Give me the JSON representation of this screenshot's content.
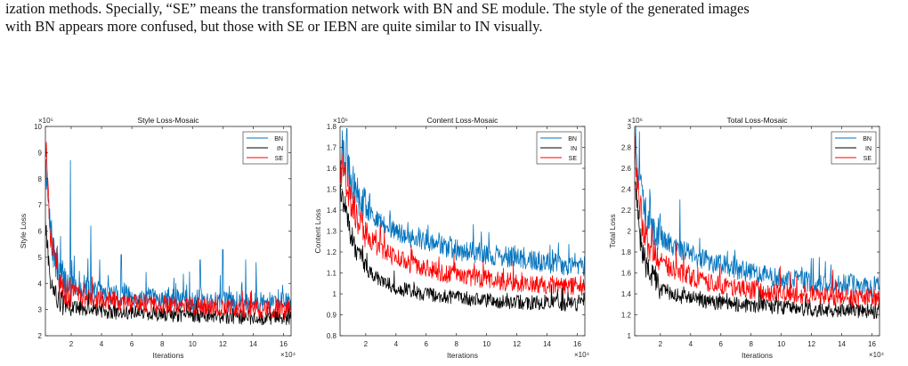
{
  "caption": {
    "line1": "ization methods. Specially, “SE” means the transformation network with BN and SE module. The style of the generated images",
    "line2": "with BN appears more confused, but those with SE or IEBN are quite similar to IN visually."
  },
  "colors": {
    "BN": "#0072bd",
    "IN": "#000000",
    "SE": "#ff0000"
  },
  "chart_data": [
    {
      "type": "line",
      "title": "Style Loss-Mosaic",
      "xlabel": "Iterations",
      "ylabel": "Style Loss",
      "x_exponent": "×10⁴",
      "y_exponent": "×10⁵",
      "xlim": [
        0.3,
        16.5
      ],
      "ylim": [
        2,
        10
      ],
      "xticks": [
        2,
        4,
        6,
        8,
        10,
        12,
        14,
        16
      ],
      "yticks": [
        2,
        3,
        4,
        5,
        6,
        7,
        8,
        9,
        10
      ],
      "legend_position": "top-right",
      "series": [
        {
          "name": "BN",
          "color": "#0072bd",
          "x": [
            0.3,
            0.45,
            0.6,
            0.8,
            1,
            1.3,
            1.6,
            2,
            2.5,
            3,
            4,
            5,
            6,
            7,
            8,
            9,
            10,
            11,
            12,
            13,
            14,
            15,
            16,
            16.5
          ],
          "y": [
            8.9,
            7.3,
            6.2,
            5.3,
            4.7,
            4.3,
            4.1,
            3.95,
            3.85,
            3.75,
            3.65,
            3.55,
            3.5,
            3.45,
            3.4,
            3.38,
            3.36,
            3.34,
            3.32,
            3.3,
            3.28,
            3.26,
            3.25,
            3.25
          ],
          "spikes": [
            [
              1.95,
              8.7
            ],
            [
              3.3,
              6.2
            ],
            [
              1.3,
              5.8
            ],
            [
              12.0,
              5.3
            ],
            [
              10.5,
              4.9
            ],
            [
              5.3,
              5.1
            ],
            [
              13.5,
              4.9
            ],
            [
              14.2,
              4.8
            ]
          ]
        },
        {
          "name": "IN",
          "color": "#000000",
          "x": [
            0.3,
            0.45,
            0.6,
            0.8,
            1,
            1.3,
            1.6,
            2,
            2.5,
            3,
            4,
            5,
            6,
            7,
            8,
            9,
            10,
            11,
            12,
            13,
            14,
            15,
            16,
            16.5
          ],
          "y": [
            6.6,
            5.2,
            4.3,
            3.8,
            3.5,
            3.3,
            3.2,
            3.12,
            3.05,
            3.0,
            2.95,
            2.9,
            2.88,
            2.85,
            2.82,
            2.8,
            2.78,
            2.76,
            2.74,
            2.72,
            2.7,
            2.68,
            2.66,
            2.65
          ],
          "spikes": []
        },
        {
          "name": "SE",
          "color": "#ff0000",
          "x": [
            0.3,
            0.45,
            0.6,
            0.8,
            1,
            1.3,
            1.6,
            2,
            2.5,
            3,
            4,
            5,
            6,
            7,
            8,
            9,
            10,
            11,
            12,
            13,
            14,
            15,
            16,
            16.5
          ],
          "y": [
            9.3,
            7.4,
            6.1,
            5.1,
            4.5,
            4.0,
            3.8,
            3.65,
            3.55,
            3.48,
            3.4,
            3.32,
            3.27,
            3.22,
            3.18,
            3.15,
            3.12,
            3.1,
            3.08,
            3.06,
            3.04,
            3.02,
            3.0,
            3.0
          ],
          "spikes": [
            [
              0.35,
              9.4
            ]
          ]
        }
      ]
    },
    {
      "type": "line",
      "title": "Content Loss-Mosaic",
      "xlabel": "Iterations",
      "ylabel": "Content Loss",
      "x_exponent": "×10⁴",
      "y_exponent": "×10⁶",
      "xlim": [
        0.3,
        16.5
      ],
      "ylim": [
        0.8,
        1.8
      ],
      "xticks": [
        2,
        4,
        6,
        8,
        10,
        12,
        14,
        16
      ],
      "yticks": [
        0.8,
        0.9,
        1,
        1.1,
        1.2,
        1.3,
        1.4,
        1.5,
        1.6,
        1.7,
        1.8
      ],
      "legend_position": "top-right",
      "series": [
        {
          "name": "BN",
          "color": "#0072bd",
          "x": [
            0.3,
            0.5,
            0.8,
            1,
            1.5,
            2,
            3,
            4,
            5,
            6,
            7,
            8,
            9,
            10,
            11,
            12,
            13,
            14,
            15,
            16,
            16.5
          ],
          "y": [
            1.62,
            1.66,
            1.6,
            1.56,
            1.46,
            1.41,
            1.34,
            1.3,
            1.27,
            1.25,
            1.23,
            1.21,
            1.2,
            1.19,
            1.18,
            1.17,
            1.16,
            1.15,
            1.14,
            1.13,
            1.13
          ],
          "spikes": [
            [
              0.75,
              1.79
            ],
            [
              0.45,
              1.78
            ]
          ]
        },
        {
          "name": "IN",
          "color": "#000000",
          "x": [
            0.3,
            0.5,
            0.8,
            1,
            1.5,
            2,
            3,
            4,
            5,
            6,
            7,
            8,
            9,
            10,
            11,
            12,
            13,
            14,
            15,
            16,
            16.5
          ],
          "y": [
            1.5,
            1.45,
            1.35,
            1.28,
            1.18,
            1.12,
            1.06,
            1.03,
            1.01,
            1.0,
            0.99,
            0.98,
            0.975,
            0.97,
            0.965,
            0.96,
            0.958,
            0.955,
            0.952,
            0.95,
            0.95
          ],
          "spikes": []
        },
        {
          "name": "SE",
          "color": "#ff0000",
          "x": [
            0.3,
            0.5,
            0.8,
            1,
            1.5,
            2,
            3,
            4,
            5,
            6,
            7,
            8,
            9,
            10,
            11,
            12,
            13,
            14,
            15,
            16,
            16.5
          ],
          "y": [
            1.58,
            1.6,
            1.52,
            1.45,
            1.34,
            1.28,
            1.21,
            1.17,
            1.14,
            1.12,
            1.1,
            1.09,
            1.08,
            1.07,
            1.06,
            1.055,
            1.05,
            1.045,
            1.04,
            1.035,
            1.035
          ],
          "spikes": []
        }
      ]
    },
    {
      "type": "line",
      "title": "Total Loss-Mosaic",
      "xlabel": "Iterations",
      "ylabel": "Total Loss",
      "x_exponent": "×10⁴",
      "y_exponent": "×10⁶",
      "xlim": [
        0.3,
        16.5
      ],
      "ylim": [
        1,
        3
      ],
      "xticks": [
        2,
        4,
        6,
        8,
        10,
        12,
        14,
        16
      ],
      "yticks": [
        1,
        1.2,
        1.4,
        1.6,
        1.8,
        2,
        2.2,
        2.4,
        2.6,
        2.8,
        3
      ],
      "legend_position": "top-right",
      "series": [
        {
          "name": "BN",
          "color": "#0072bd",
          "x": [
            0.3,
            0.45,
            0.6,
            0.8,
            1,
            1.3,
            1.6,
            2,
            2.5,
            3,
            4,
            5,
            6,
            7,
            8,
            9,
            10,
            11,
            12,
            13,
            14,
            15,
            16,
            16.5
          ],
          "y": [
            2.9,
            2.7,
            2.5,
            2.35,
            2.2,
            2.1,
            2.02,
            1.96,
            1.9,
            1.85,
            1.78,
            1.72,
            1.68,
            1.64,
            1.6,
            1.57,
            1.55,
            1.53,
            1.51,
            1.5,
            1.49,
            1.48,
            1.47,
            1.47
          ],
          "spikes": [
            [
              3.3,
              2.3
            ],
            [
              0.6,
              2.95
            ],
            [
              1.3,
              2.4
            ],
            [
              12.5,
              1.75
            ]
          ]
        },
        {
          "name": "IN",
          "color": "#000000",
          "x": [
            0.3,
            0.45,
            0.6,
            0.8,
            1,
            1.3,
            1.6,
            2,
            2.5,
            3,
            4,
            5,
            6,
            7,
            8,
            9,
            10,
            11,
            12,
            13,
            14,
            15,
            16,
            16.5
          ],
          "y": [
            2.55,
            2.25,
            2.0,
            1.82,
            1.7,
            1.6,
            1.52,
            1.46,
            1.42,
            1.39,
            1.35,
            1.33,
            1.31,
            1.3,
            1.29,
            1.28,
            1.27,
            1.26,
            1.25,
            1.25,
            1.24,
            1.24,
            1.23,
            1.23
          ],
          "spikes": []
        },
        {
          "name": "SE",
          "color": "#ff0000",
          "x": [
            0.3,
            0.45,
            0.6,
            0.8,
            1,
            1.3,
            1.6,
            2,
            2.5,
            3,
            4,
            5,
            6,
            7,
            8,
            9,
            10,
            11,
            12,
            13,
            14,
            15,
            16,
            16.5
          ],
          "y": [
            2.85,
            2.55,
            2.3,
            2.1,
            1.95,
            1.85,
            1.78,
            1.72,
            1.66,
            1.62,
            1.56,
            1.52,
            1.48,
            1.46,
            1.44,
            1.42,
            1.41,
            1.4,
            1.39,
            1.38,
            1.37,
            1.36,
            1.36,
            1.36
          ],
          "spikes": []
        }
      ]
    }
  ]
}
